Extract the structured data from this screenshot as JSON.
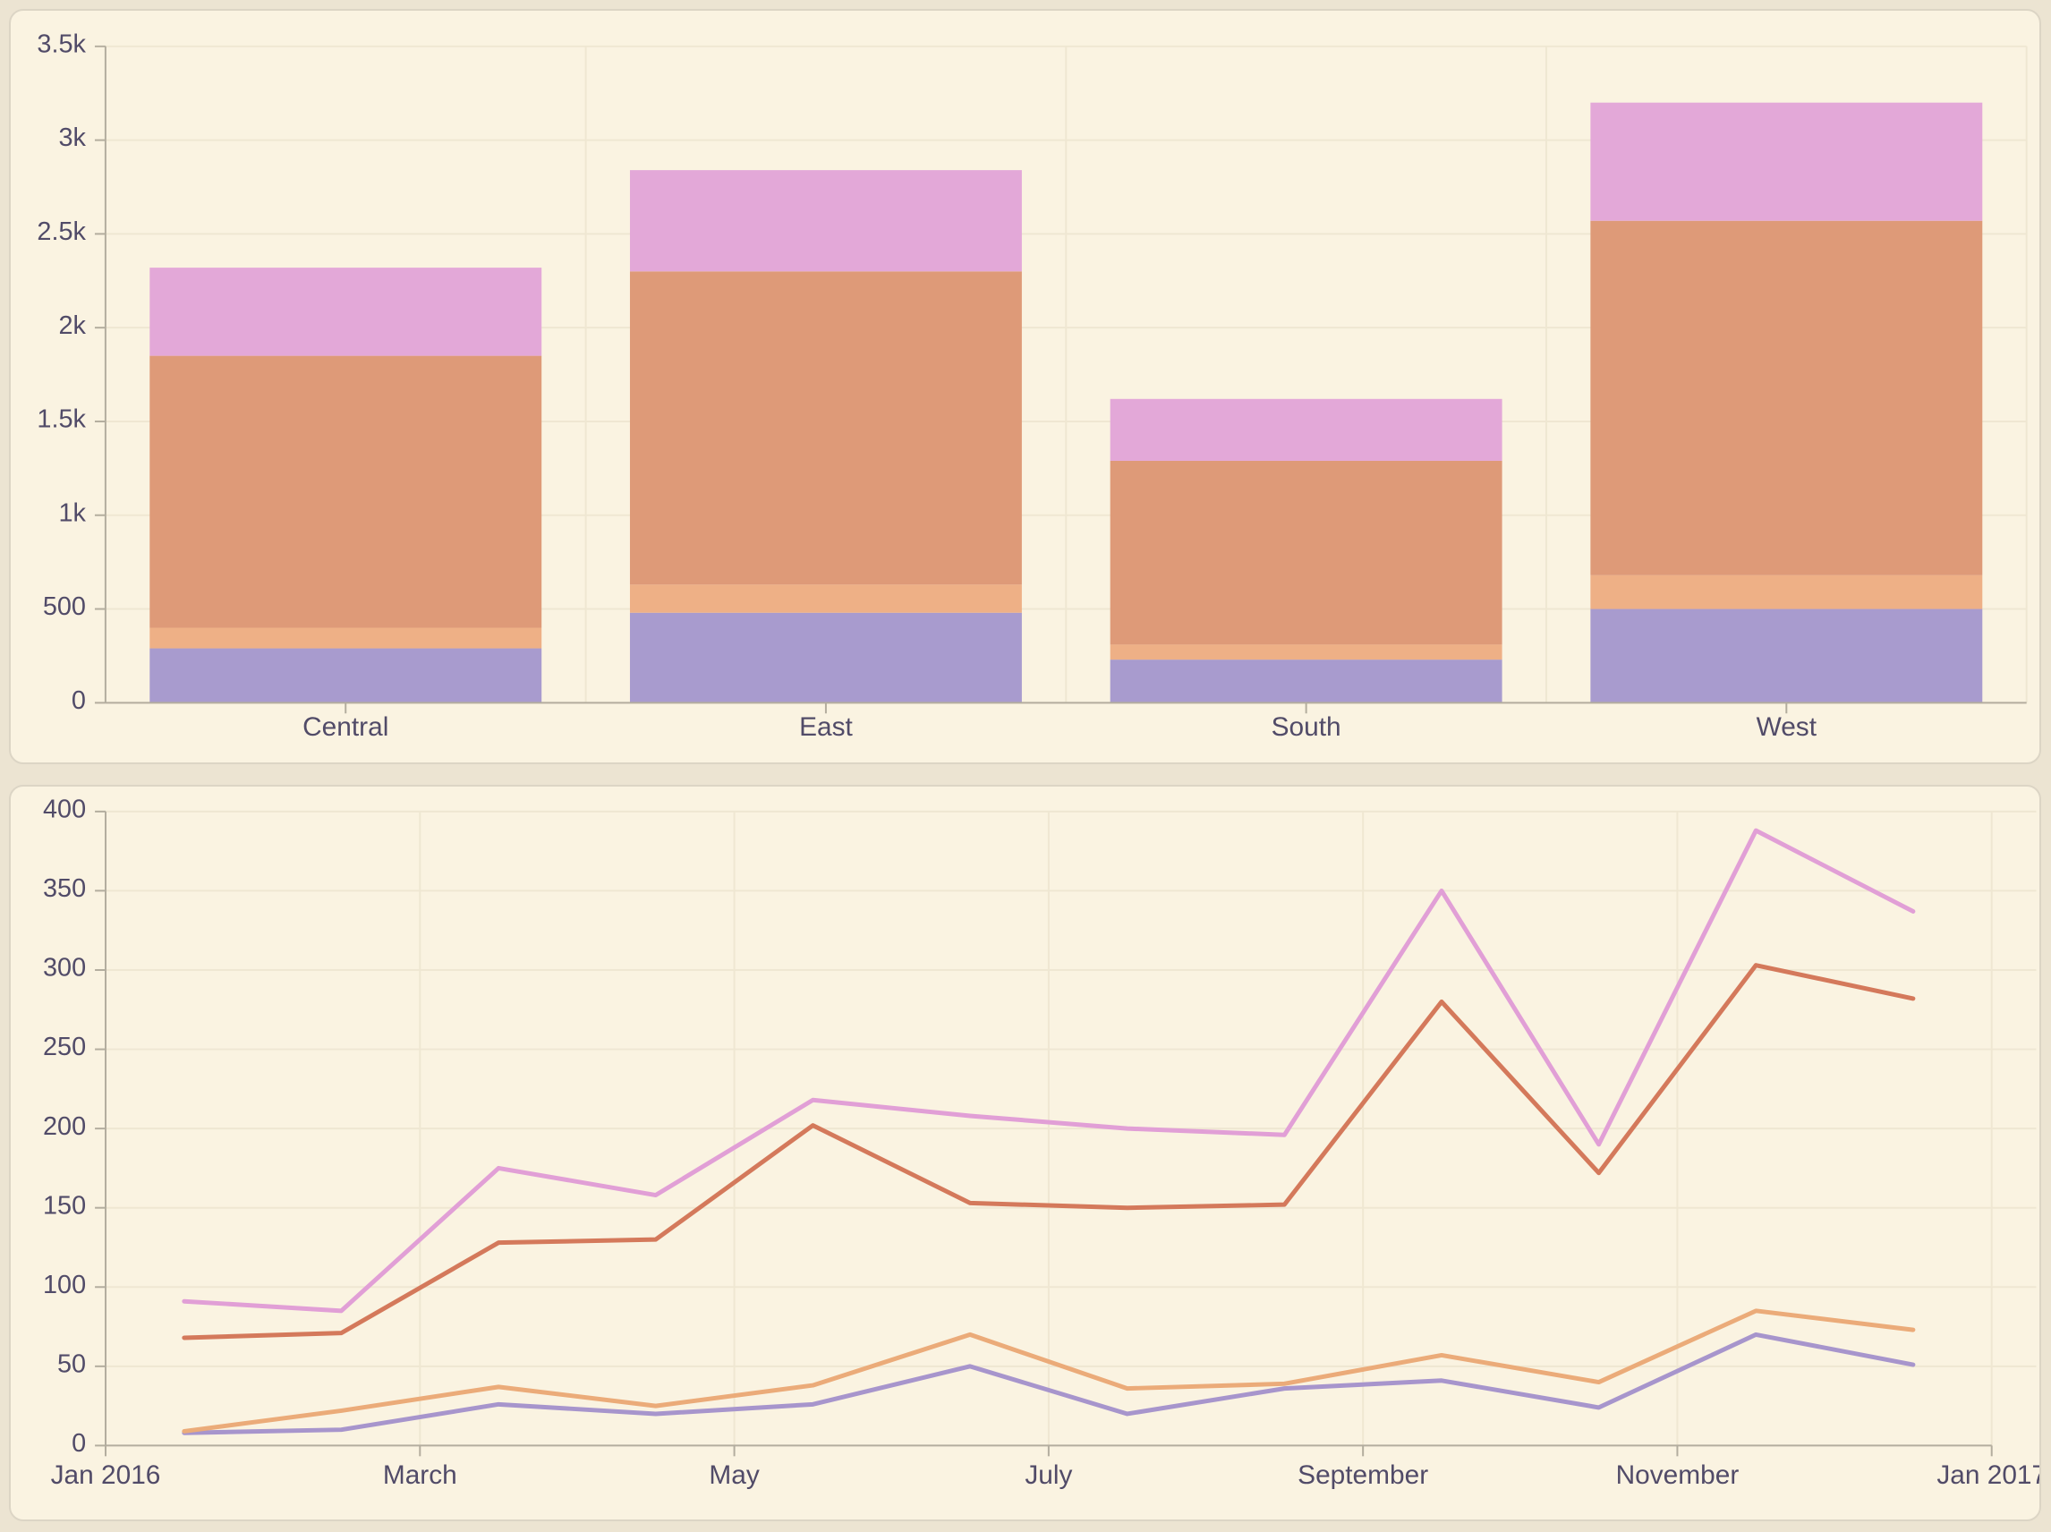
{
  "page": {
    "background_color": "#ece4d2",
    "card_background_color": "#faf3e1",
    "card_border_color": "#dcd5c5",
    "grid_color": "#efe7d2",
    "axis_color": "#b3ad9e",
    "label_color": "#514b68"
  },
  "chart_data": [
    {
      "id": "regional-stacked-bar",
      "type": "bar",
      "stacked": true,
      "title": "",
      "xlabel": "",
      "ylabel": "",
      "categories": [
        "Central",
        "East",
        "South",
        "West"
      ],
      "series": [
        {
          "name": "series-1-purple",
          "color": "#a89bce",
          "values": [
            290,
            480,
            230,
            500
          ]
        },
        {
          "name": "series-2-tan",
          "color": "#eeb086",
          "values": [
            110,
            150,
            80,
            180
          ]
        },
        {
          "name": "series-3-salmon",
          "color": "#de9a78",
          "values": [
            1450,
            1670,
            980,
            1890
          ]
        },
        {
          "name": "series-4-pink",
          "color": "#e3a8d8",
          "values": [
            470,
            540,
            330,
            630
          ]
        }
      ],
      "stack_totals": [
        2320,
        2840,
        1620,
        3200
      ],
      "ylim": [
        0,
        3500
      ],
      "y_tick_interval": 500,
      "y_tick_labels": [
        "0",
        "500",
        "1k",
        "1.5k",
        "2k",
        "2.5k",
        "3k",
        "3.5k"
      ],
      "grid": true,
      "legend": "none"
    },
    {
      "id": "monthly-lines",
      "type": "line",
      "title": "",
      "xlabel": "",
      "ylabel": "",
      "x": [
        "Jan 2016",
        "Feb 2016",
        "Mar 2016",
        "Apr 2016",
        "May 2016",
        "Jun 2016",
        "Jul 2016",
        "Aug 2016",
        "Sep 2016",
        "Oct 2016",
        "Nov 2016",
        "Dec 2016"
      ],
      "x_tick_labels": [
        "Jan 2016",
        "March",
        "May",
        "July",
        "September",
        "November",
        "Jan 2017"
      ],
      "series": [
        {
          "name": "series-pink",
          "color": "#e19fd6",
          "values": [
            91,
            85,
            175,
            158,
            218,
            208,
            200,
            196,
            350,
            190,
            388,
            337
          ]
        },
        {
          "name": "series-coral",
          "color": "#d4795b",
          "values": [
            68,
            71,
            128,
            130,
            202,
            153,
            150,
            152,
            280,
            172,
            303,
            282
          ]
        },
        {
          "name": "series-tan",
          "color": "#ebab79",
          "values": [
            9,
            22,
            37,
            25,
            38,
            70,
            36,
            39,
            57,
            40,
            85,
            73
          ]
        },
        {
          "name": "series-purple",
          "color": "#a795cc",
          "values": [
            8,
            10,
            26,
            20,
            26,
            50,
            20,
            36,
            41,
            24,
            70,
            51
          ]
        }
      ],
      "ylim": [
        0,
        400
      ],
      "y_tick_interval": 50,
      "y_tick_labels": [
        "0",
        "50",
        "100",
        "150",
        "200",
        "250",
        "300",
        "350",
        "400"
      ],
      "grid": true,
      "legend": "none"
    }
  ]
}
